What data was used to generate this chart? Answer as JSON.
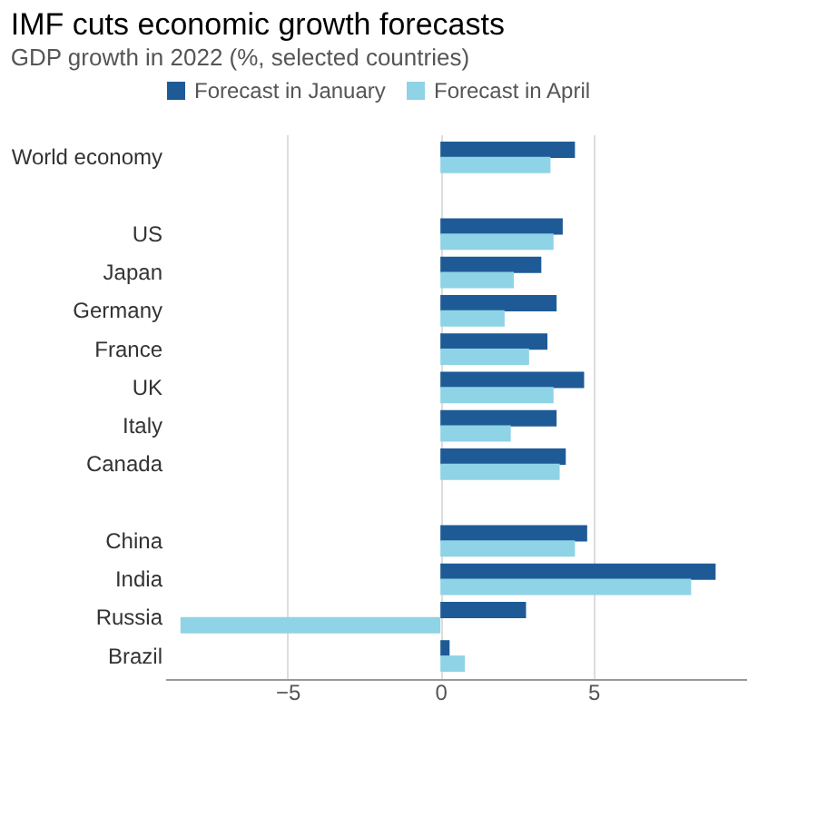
{
  "chart_data": {
    "type": "bar",
    "orientation": "horizontal",
    "title": "IMF cuts economic growth forecasts",
    "subtitle": "GDP growth in 2022 (%, selected countries)",
    "categories": [
      "World economy",
      null,
      "US",
      "Japan",
      "Germany",
      "France",
      "UK",
      "Italy",
      "Canada",
      null,
      "China",
      "India",
      "Russia",
      "Brazil"
    ],
    "series": [
      {
        "name": "Forecast in January",
        "color": "#1e5b96",
        "values": [
          4.4,
          null,
          4.0,
          3.3,
          3.8,
          3.5,
          4.7,
          3.8,
          4.1,
          null,
          4.8,
          9.0,
          2.8,
          0.3
        ]
      },
      {
        "name": "Forecast in April",
        "color": "#8fd3e6",
        "values": [
          3.6,
          null,
          3.7,
          2.4,
          2.1,
          2.9,
          3.7,
          2.3,
          3.9,
          null,
          4.4,
          8.2,
          -8.5,
          0.8
        ]
      }
    ],
    "xlim": [
      -9,
      10
    ],
    "xticks": [
      -5,
      0,
      5
    ],
    "grid": "x",
    "legend": "top"
  }
}
